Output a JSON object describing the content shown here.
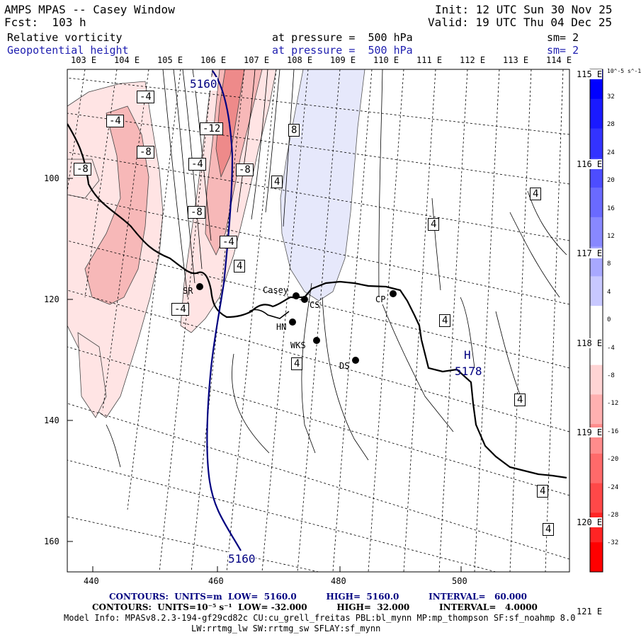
{
  "header": {
    "title": "AMPS MPAS -- Casey Window",
    "fcst": "Fcst:  103 h",
    "init": "Init: 12 UTC Sun 30 Nov 25",
    "valid": "Valid: 19 UTC Thu 04 Dec 25",
    "field1_name": "Relative vorticity",
    "field1_level": "at pressure =  500 hPa",
    "field1_sm": "sm= 2",
    "field2_name": "Geopotential height",
    "field2_level": "at pressure =  500 hPa",
    "field2_sm": "sm= 2"
  },
  "map": {
    "lon_labels_top": [
      "103 E",
      "104 E",
      "105 E",
      "106 E",
      "107 E",
      "108 E",
      "109 E",
      "110 E",
      "111 E",
      "112 E",
      "113 E",
      "114 E"
    ],
    "lon_labels_right": [
      "115 E",
      "116 E",
      "117 E",
      "118 E",
      "119 E",
      "120 E",
      "121 E"
    ],
    "x_ticks": [
      "440",
      "460",
      "480",
      "500"
    ],
    "y_ticks": [
      "100",
      "120",
      "140",
      "160"
    ],
    "stations": [
      {
        "name": "SR"
      },
      {
        "name": "Casey"
      },
      {
        "name": "CS"
      },
      {
        "name": "HN"
      },
      {
        "name": "WKS"
      },
      {
        "name": "DS"
      },
      {
        "name": "CP"
      }
    ],
    "vorticity_labels": [
      "-4",
      "-4",
      "-8",
      "-8",
      "-12",
      "-4",
      "-8",
      "-8",
      "-4",
      "-4",
      "8",
      "4",
      "4",
      "4",
      "4",
      "4",
      "4",
      "4",
      "4",
      "4"
    ],
    "height_labels": [
      "5160",
      "5160"
    ],
    "high_marker": "H",
    "high_value": "5178",
    "colors": {
      "negative_light": "#ffe4e4",
      "negative_mid": "#f7b8b8",
      "negative_strong": "#ee8a8a",
      "positive_light": "#e6e8fb",
      "height_contour": "#000080",
      "coastline": "#000000"
    }
  },
  "colorbar": {
    "unit": "10^-5 s^-1",
    "ticks": [
      "32",
      "28",
      "24",
      "20",
      "16",
      "12",
      "8",
      "4",
      "0",
      "-4",
      "-8",
      "-12",
      "-16",
      "-20",
      "-24",
      "-28",
      "-32"
    ]
  },
  "footer": {
    "contours1": "CONTOURS:  UNITS=m  LOW=  5160.0          HIGH=  5160.0          INTERVAL=   60.000",
    "contours2": "CONTOURS:  UNITS=10⁻⁵ s⁻¹  LOW= -32.000          HIGH=  32.000          INTERVAL=   4.0000",
    "model_info": "Model Info: MPASv8.2.3-194-gf29cd82c CU:cu_grell_freitas PBL:bl_mynn MP:mp_thompson SF:sf_noahmp 8.0",
    "model_info2": "LW:rrtmg_lw SW:rrtmg_sw SFLAY:sf_mynn"
  }
}
